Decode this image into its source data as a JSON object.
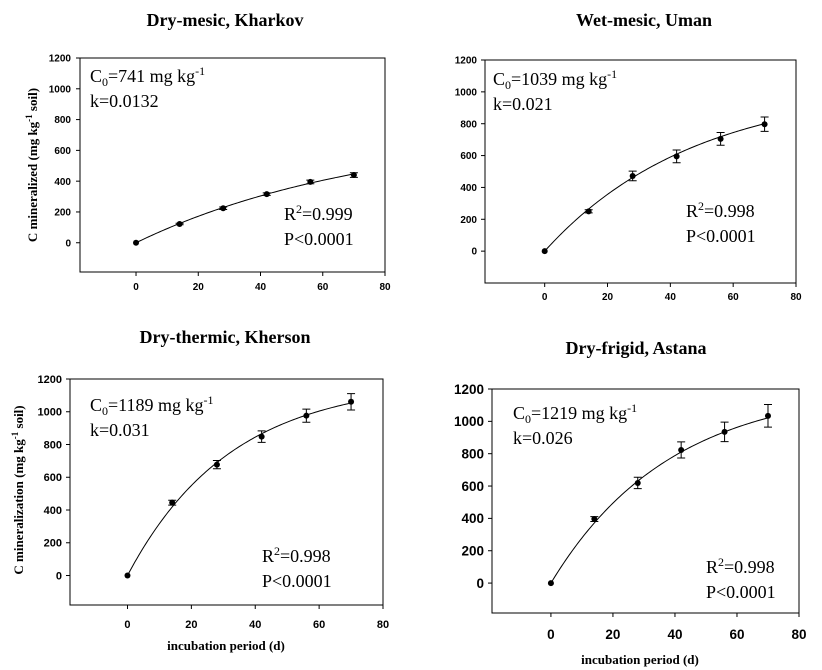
{
  "chart_data": [
    {
      "type": "scatter",
      "title": "Dry-mesic, Kharkov",
      "ylabel": {
        "pre": "C mineralized (mg kg",
        "sup": "-1",
        "post": " soil)"
      },
      "xlim": [
        -18,
        80
      ],
      "ylim": [
        -190,
        1200
      ],
      "xticks": [
        0,
        20,
        40,
        60,
        80
      ],
      "yticks": [
        0,
        200,
        400,
        600,
        800,
        1000,
        1200
      ],
      "grid": false,
      "x": [
        0,
        14,
        28,
        42,
        56,
        70
      ],
      "y": [
        0,
        122,
        224,
        316,
        395,
        440
      ],
      "y_error": [
        0,
        5,
        8,
        8,
        12,
        15
      ],
      "fit": {
        "C0": 741,
        "k": 0.0132
      },
      "annotations": {
        "c0": {
          "symbol": "C",
          "sub": "0",
          "text": "=741 mg kg",
          "sup": "-1"
        },
        "k": "k=0.0132",
        "r2": {
          "symbol": "R",
          "sup": "2",
          "text": "=0.999"
        },
        "p": "P<0.0001"
      }
    },
    {
      "type": "scatter",
      "title": "Wet-mesic, Uman",
      "xlim": [
        -19,
        80
      ],
      "ylim": [
        -200,
        1200
      ],
      "xticks": [
        0,
        20,
        40,
        60,
        80
      ],
      "yticks": [
        0,
        200,
        400,
        600,
        800,
        1000,
        1200
      ],
      "grid": false,
      "x": [
        0,
        14,
        28,
        42,
        56,
        70
      ],
      "y": [
        0,
        250,
        472,
        595,
        705,
        797
      ],
      "y_error": [
        0,
        10,
        30,
        40,
        40,
        45
      ],
      "fit": {
        "C0": 1039,
        "k": 0.021
      },
      "annotations": {
        "c0": {
          "symbol": "C",
          "sub": "0",
          "text": "=1039 mg kg",
          "sup": "-1"
        },
        "k": "k=0.021",
        "r2": {
          "symbol": "R",
          "sup": "2",
          "text": "=0.998"
        },
        "p": "P<0.0001"
      }
    },
    {
      "type": "scatter",
      "title": "Dry-thermic, Kherson",
      "ylabel": {
        "pre": "C mineralization (mg kg",
        "sup": "-1",
        "post": " soil)"
      },
      "xlabel": "incubation period (d)",
      "xlim": [
        -18,
        80
      ],
      "ylim": [
        -180,
        1200
      ],
      "xticks": [
        0,
        20,
        40,
        60,
        80
      ],
      "yticks": [
        0,
        200,
        400,
        600,
        800,
        1000,
        1200
      ],
      "grid": false,
      "x": [
        0,
        14,
        28,
        42,
        56,
        70
      ],
      "y": [
        0,
        445,
        677,
        848,
        976,
        1061
      ],
      "y_error": [
        0,
        15,
        25,
        35,
        40,
        50
      ],
      "fit": {
        "C0": 1189,
        "k": 0.031
      },
      "annotations": {
        "c0": {
          "symbol": "C",
          "sub": "0",
          "text": "=1189 mg kg",
          "sup": "-1"
        },
        "k": "k=0.031",
        "r2": {
          "symbol": "R",
          "sup": "2",
          "text": "=0.998"
        },
        "p": "P<0.0001"
      }
    },
    {
      "type": "scatter",
      "title": "Dry-frigid, Astana",
      "xlabel": "incubation period (d)",
      "xlim": [
        -19,
        80
      ],
      "ylim": [
        -185,
        1200
      ],
      "xticks": [
        0,
        20,
        40,
        60,
        80
      ],
      "yticks": [
        0,
        200,
        400,
        600,
        800,
        1000,
        1200
      ],
      "grid": false,
      "x": [
        0,
        14,
        28,
        42,
        56,
        70
      ],
      "y": [
        0,
        396,
        619,
        823,
        935,
        1034
      ],
      "y_error": [
        0,
        15,
        35,
        50,
        60,
        70
      ],
      "fit": {
        "C0": 1219,
        "k": 0.026
      },
      "annotations": {
        "c0": {
          "symbol": "C",
          "sub": "0",
          "text": "=1219 mg kg",
          "sup": "-1"
        },
        "k": "k=0.026",
        "r2": {
          "symbol": "R",
          "sup": "2",
          "text": "=0.998"
        },
        "p": "P<0.0001"
      }
    }
  ]
}
